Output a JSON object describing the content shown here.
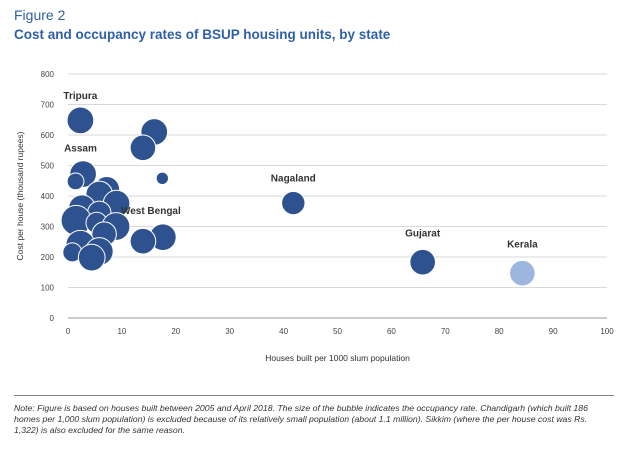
{
  "figure_label": "Figure 2",
  "title": "Cost and occupancy rates of BSUP housing units, by state",
  "note": "Note: Figure is based on houses built between 2005 and April 2018. The size of the bubble indicates the occupancy rate. Chandigarh (which built 186 homes per 1,000 slum population) is excluded because of its relatively small population (about 1.1 million). Sikkim (where the per house cost was Rs. 1,322) is also excluded for the same reason.",
  "colors": {
    "title": "#2f5fa8",
    "bubble": "#2e5290",
    "bubble_light": "#9db6e0",
    "grid": "#d9d9d9",
    "axis_text": "#444444"
  },
  "chart_data": {
    "type": "scatter",
    "xlabel": "Houses built per 1000 slum population",
    "ylabel": "Cost per house (thousand rupees)",
    "xlim": [
      0,
      100
    ],
    "ylim": [
      0,
      800
    ],
    "xticks": [
      0,
      10,
      20,
      30,
      40,
      50,
      60,
      70,
      80,
      90,
      100
    ],
    "yticks": [
      0,
      100,
      200,
      300,
      400,
      500,
      600,
      700,
      800
    ],
    "grid": "horizontal",
    "size_encoding": "occupancy rate",
    "points": [
      {
        "x": 2.3,
        "y": 648,
        "size": 0.85,
        "label": "Tripura"
      },
      {
        "x": 16.0,
        "y": 610,
        "size": 0.85
      },
      {
        "x": 13.9,
        "y": 558,
        "size": 0.8
      },
      {
        "x": 2.8,
        "y": 472,
        "size": 0.85,
        "label": "Assam"
      },
      {
        "x": 17.5,
        "y": 458,
        "size": 0.2
      },
      {
        "x": 1.4,
        "y": 448,
        "size": 0.4
      },
      {
        "x": 7.2,
        "y": 422,
        "size": 0.8
      },
      {
        "x": 5.8,
        "y": 405,
        "size": 0.85
      },
      {
        "x": 9.0,
        "y": 375,
        "size": 0.85
      },
      {
        "x": 2.6,
        "y": 360,
        "size": 0.85
      },
      {
        "x": 5.8,
        "y": 345,
        "size": 0.7
      },
      {
        "x": 1.5,
        "y": 320,
        "size": 1.0
      },
      {
        "x": 5.3,
        "y": 312,
        "size": 0.6
      },
      {
        "x": 8.9,
        "y": 300,
        "size": 0.9
      },
      {
        "x": 6.7,
        "y": 275,
        "size": 0.75
      },
      {
        "x": 17.6,
        "y": 265,
        "size": 0.85,
        "label": "West Bengal"
      },
      {
        "x": 13.9,
        "y": 252,
        "size": 0.8
      },
      {
        "x": 2.3,
        "y": 240,
        "size": 0.95
      },
      {
        "x": 5.8,
        "y": 218,
        "size": 0.9
      },
      {
        "x": 0.8,
        "y": 215,
        "size": 0.5
      },
      {
        "x": 4.4,
        "y": 198,
        "size": 0.85
      },
      {
        "x": 41.8,
        "y": 377,
        "size": 0.7,
        "label": "Nagaland"
      },
      {
        "x": 65.8,
        "y": 183,
        "size": 0.8,
        "label": "Gujarat"
      },
      {
        "x": 84.3,
        "y": 147,
        "size": 0.8,
        "label": "Kerala",
        "highlight": true
      }
    ]
  }
}
